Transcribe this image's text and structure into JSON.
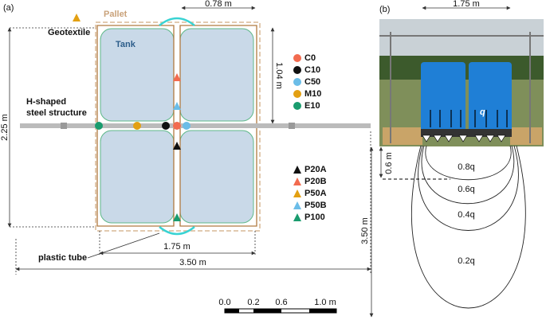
{
  "panel_a": {
    "label": "(a)",
    "pallet": "Pallet",
    "geotextile": "Geotextile",
    "tank": "Tank",
    "steel": [
      "H-shaped",
      "steel structure"
    ],
    "tube": "plastic tube",
    "dims": {
      "top": "0.78 m",
      "height": "2.25 m",
      "half": "1.04 m",
      "inner": "1.75 m",
      "outer": "3.50 m"
    },
    "legend": [
      {
        "name": "C0",
        "color": "#f26b4f",
        "shape": "circle"
      },
      {
        "name": "C10",
        "color": "#111111",
        "shape": "circle"
      },
      {
        "name": "C50",
        "color": "#6bbde8",
        "shape": "circle"
      },
      {
        "name": "M10",
        "color": "#e3a012",
        "shape": "circle"
      },
      {
        "name": "E10",
        "color": "#1a9c6e",
        "shape": "circle"
      },
      {
        "name": "P20A",
        "color": "#111111",
        "shape": "triangle"
      },
      {
        "name": "P20B",
        "color": "#f26b4f",
        "shape": "triangle"
      },
      {
        "name": "P50A",
        "color": "#e3a012",
        "shape": "triangle"
      },
      {
        "name": "P50B",
        "color": "#6bbde8",
        "shape": "triangle"
      },
      {
        "name": "P100",
        "color": "#1a9c6e",
        "shape": "triangle"
      }
    ],
    "scale": [
      "0.0",
      "0.2",
      "0.6",
      "1.0 m"
    ]
  },
  "panel_b": {
    "label": "(b)",
    "width": "1.75 m",
    "depth1": "0.6 m",
    "depth2": "3.50 m",
    "q": "q",
    "bulbs": [
      "0.8q",
      "0.6q",
      "0.4q",
      "0.2q"
    ]
  }
}
